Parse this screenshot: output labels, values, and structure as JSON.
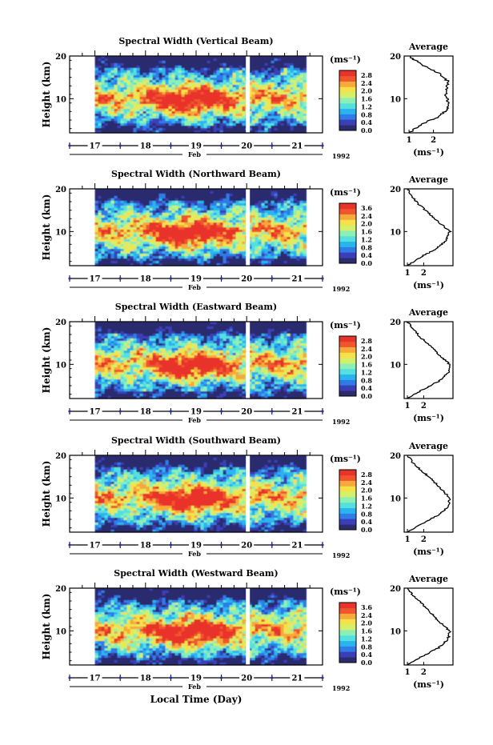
{
  "chart_data": [
    {
      "type": "heatmap",
      "title": "Spectral Width (Vertical Beam)",
      "ylabel": "Height (km)",
      "x_ticks": [
        "17",
        "18",
        "19",
        "20",
        "21"
      ],
      "month_label": "Feb",
      "year_label": "1992",
      "y_ticks": [
        "20",
        "10"
      ],
      "ylim": [
        2,
        20
      ],
      "xlim": [
        16.5,
        21.5
      ],
      "data_extent_x": [
        17.0,
        21.15
      ],
      "data_gap_x": 20.0,
      "colorbar": {
        "unit": "(ms⁻¹)",
        "ticks": [
          "2.8",
          "2.4",
          "2.0",
          "1.6",
          "1.2",
          "0.8",
          "0.4",
          "0.0"
        ]
      },
      "average_profile": {
        "title": "Average",
        "xlabel": "(ms⁻¹)",
        "x_ticks": [
          "1",
          "2"
        ],
        "xlim": [
          0.8,
          2.8
        ],
        "heights": [
          2,
          4,
          6,
          8,
          10,
          12,
          14,
          16,
          18,
          20
        ],
        "values": [
          1.0,
          1.5,
          2.3,
          2.6,
          2.55,
          2.5,
          2.6,
          2.2,
          1.5,
          1.0
        ]
      }
    },
    {
      "type": "heatmap",
      "title": "Spectral Width (Northward Beam)",
      "ylabel": "Height (km)",
      "x_ticks": [
        "17",
        "18",
        "19",
        "20",
        "21"
      ],
      "month_label": "Feb",
      "year_label": "1992",
      "y_ticks": [
        "20",
        "10"
      ],
      "ylim": [
        2,
        20
      ],
      "xlim": [
        16.5,
        21.5
      ],
      "data_extent_x": [
        17.0,
        21.15
      ],
      "data_gap_x": 20.0,
      "colorbar": {
        "unit": "(ms⁻¹)",
        "ticks": [
          "3.6",
          "2.4",
          "2.0",
          "1.6",
          "1.2",
          "0.8",
          "0.4",
          "0.0"
        ]
      },
      "average_profile": {
        "title": "Average",
        "xlabel": "(ms⁻¹)",
        "x_ticks": [
          "1",
          "2"
        ],
        "xlim": [
          0.8,
          3.8
        ],
        "heights": [
          2,
          4,
          6,
          8,
          10,
          12,
          14,
          16,
          18,
          20
        ],
        "values": [
          1.0,
          1.8,
          2.8,
          3.4,
          3.6,
          3.0,
          2.4,
          1.8,
          1.3,
          1.0
        ]
      }
    },
    {
      "type": "heatmap",
      "title": "Spectral Width (Eastward Beam)",
      "ylabel": "Height (km)",
      "x_ticks": [
        "17",
        "18",
        "19",
        "20",
        "21"
      ],
      "month_label": "Feb",
      "year_label": "1992",
      "y_ticks": [
        "20",
        "10"
      ],
      "ylim": [
        2,
        20
      ],
      "xlim": [
        16.5,
        21.5
      ],
      "data_extent_x": [
        17.0,
        21.15
      ],
      "data_gap_x": 20.0,
      "colorbar": {
        "unit": "(ms⁻¹)",
        "ticks": [
          "2.8",
          "2.4",
          "2.0",
          "1.6",
          "1.2",
          "0.8",
          "0.4",
          "0.0"
        ]
      },
      "average_profile": {
        "title": "Average",
        "xlabel": "(ms⁻¹)",
        "x_ticks": [
          "1",
          "2"
        ],
        "xlim": [
          0.8,
          3.8
        ],
        "heights": [
          2,
          4,
          6,
          8,
          10,
          12,
          14,
          16,
          18,
          20
        ],
        "values": [
          1.0,
          1.9,
          2.9,
          3.5,
          3.6,
          3.0,
          2.5,
          1.9,
          1.4,
          1.0
        ]
      }
    },
    {
      "type": "heatmap",
      "title": "Spectral Width (Southward Beam)",
      "ylabel": "Height (km)",
      "x_ticks": [
        "17",
        "18",
        "19",
        "20",
        "21"
      ],
      "month_label": "Feb",
      "year_label": "1992",
      "y_ticks": [
        "20",
        "10"
      ],
      "ylim": [
        2,
        20
      ],
      "xlim": [
        16.5,
        21.5
      ],
      "data_extent_x": [
        17.0,
        21.15
      ],
      "data_gap_x": 20.0,
      "colorbar": {
        "unit": "(ms⁻¹)",
        "ticks": [
          "2.8",
          "2.4",
          "2.0",
          "1.6",
          "1.2",
          "0.8",
          "0.4",
          "0.0"
        ]
      },
      "average_profile": {
        "title": "Average",
        "xlabel": "(ms⁻¹)",
        "x_ticks": [
          "1",
          "2"
        ],
        "xlim": [
          0.8,
          3.8
        ],
        "heights": [
          2,
          4,
          6,
          8,
          10,
          12,
          14,
          16,
          18,
          20
        ],
        "values": [
          1.0,
          1.9,
          2.9,
          3.5,
          3.6,
          3.1,
          2.6,
          2.0,
          1.4,
          1.0
        ]
      }
    },
    {
      "type": "heatmap",
      "title": "Spectral Width (Westward Beam)",
      "ylabel": "Height (km)",
      "x_ticks": [
        "17",
        "18",
        "19",
        "20",
        "21"
      ],
      "month_label": "Feb",
      "year_label": "1992",
      "y_ticks": [
        "20",
        "10"
      ],
      "ylim": [
        2,
        20
      ],
      "xlim": [
        16.5,
        21.5
      ],
      "data_extent_x": [
        17.0,
        21.15
      ],
      "data_gap_x": 20.0,
      "colorbar": {
        "unit": "(ms⁻¹)",
        "ticks": [
          "3.6",
          "2.4",
          "2.0",
          "1.6",
          "1.2",
          "0.8",
          "0.4",
          "0.0"
        ]
      },
      "average_profile": {
        "title": "Average",
        "xlabel": "(ms⁻¹)",
        "x_ticks": [
          "1",
          "2"
        ],
        "xlim": [
          0.8,
          3.8
        ],
        "heights": [
          2,
          4,
          6,
          8,
          10,
          12,
          14,
          16,
          18,
          20
        ],
        "values": [
          1.0,
          1.9,
          2.9,
          3.5,
          3.6,
          3.0,
          2.5,
          2.0,
          1.4,
          1.0
        ]
      }
    }
  ],
  "figure": {
    "xlabel": "Local Time (Day)",
    "colormap": [
      "#2b2b6e",
      "#3a3fb8",
      "#2f7be8",
      "#29b4f0",
      "#55e0e0",
      "#8cf0b4",
      "#d4f06a",
      "#f5e14a",
      "#f7a93a",
      "#f0552d",
      "#e8332a"
    ]
  }
}
